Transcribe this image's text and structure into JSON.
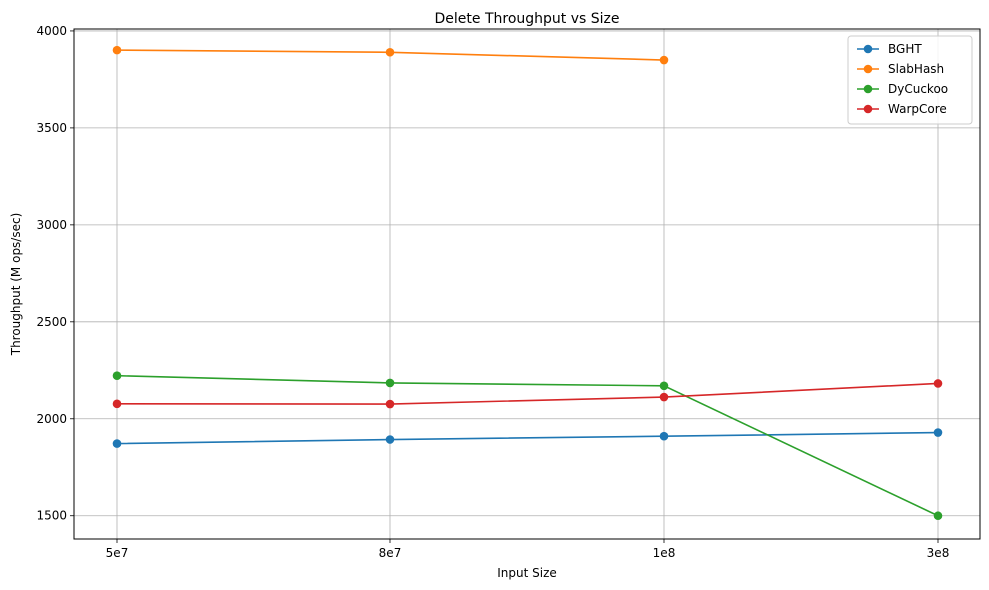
{
  "chart_data": {
    "type": "line",
    "title": "Delete Throughput vs Size",
    "xlabel": "Input Size",
    "ylabel": "Throughput (M ops/sec)",
    "categories": [
      "5e7",
      "8e7",
      "1e8",
      "3e8"
    ],
    "ylim": [
      1380,
      4010
    ],
    "yticks": [
      1500,
      2000,
      2500,
      3000,
      3500,
      4000
    ],
    "grid": true,
    "legend_position": "top-right",
    "series": [
      {
        "name": "BGHT",
        "color": "#1f77b4",
        "values": [
          1872,
          1893,
          1910,
          1929
        ]
      },
      {
        "name": "SlabHash",
        "color": "#ff7f0e",
        "values": [
          3901,
          3890,
          3850,
          null
        ]
      },
      {
        "name": "DyCuckoo",
        "color": "#2ca02c",
        "values": [
          2222,
          2185,
          2170,
          1500
        ]
      },
      {
        "name": "WarpCore",
        "color": "#d62728",
        "values": [
          2077,
          2076,
          2112,
          2182
        ]
      }
    ]
  }
}
